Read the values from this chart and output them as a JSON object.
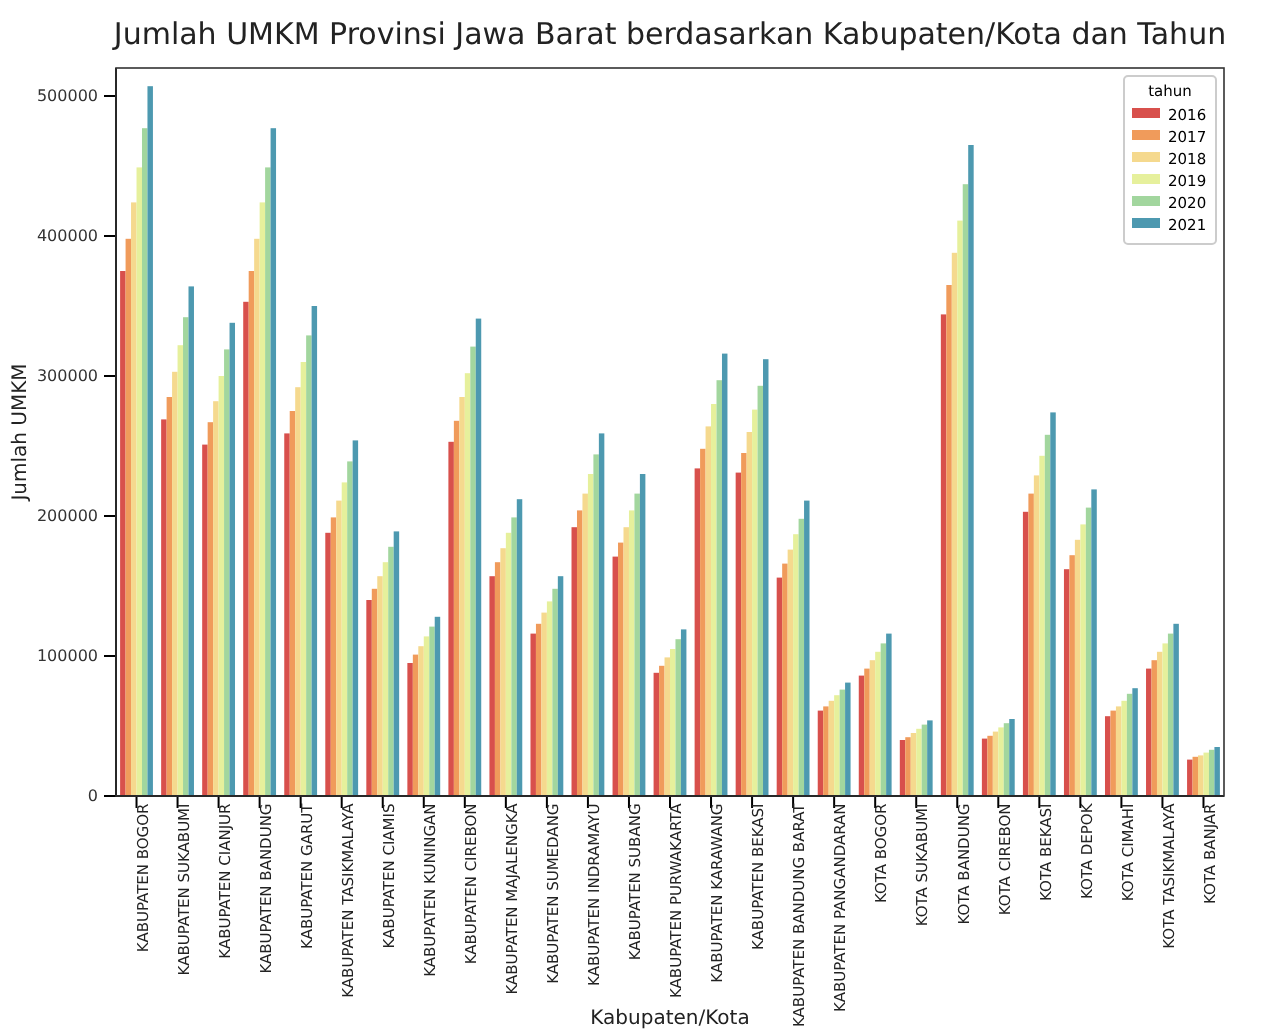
{
  "chart_data": {
    "type": "bar",
    "title": "Jumlah UMKM Provinsi Jawa Barat berdasarkan Kabupaten/Kota dan Tahun",
    "xlabel": "Kabupaten/Kota",
    "ylabel": "Jumlah UMKM",
    "legend_title": "tahun",
    "legend": "top right",
    "grid": false,
    "categories": [
      "KABUPATEN BOGOR",
      "KABUPATEN SUKABUMI",
      "KABUPATEN CIANJUR",
      "KABUPATEN BANDUNG",
      "KABUPATEN GARUT",
      "KABUPATEN TASIKMALAYA",
      "KABUPATEN CIAMIS",
      "KABUPATEN KUNINGAN",
      "KABUPATEN CIREBON",
      "KABUPATEN MAJALENGKA",
      "KABUPATEN SUMEDANG",
      "KABUPATEN INDRAMAYU",
      "KABUPATEN SUBANG",
      "KABUPATEN PURWAKARTA",
      "KABUPATEN KARAWANG",
      "KABUPATEN BEKASI",
      "KABUPATEN BANDUNG BARAT",
      "KABUPATEN PANGANDARAN",
      "KOTA BOGOR",
      "KOTA SUKABUMI",
      "KOTA BANDUNG",
      "KOTA CIREBON",
      "KOTA BEKASI",
      "KOTA DEPOK",
      "KOTA CIMAHI",
      "KOTA TASIKMALAYA",
      "KOTA BANJAR"
    ],
    "ylim": [
      0,
      520000
    ],
    "yticks": [
      0,
      100000,
      200000,
      300000,
      400000,
      500000
    ],
    "series": [
      {
        "name": "2016",
        "color": "#d8504c",
        "values": [
          375000,
          269000,
          251000,
          353000,
          259000,
          188000,
          140000,
          95000,
          253000,
          157000,
          116000,
          192000,
          171000,
          88000,
          234000,
          231000,
          156000,
          61000,
          86000,
          40000,
          344000,
          41000,
          203000,
          162000,
          57000,
          91000,
          26000
        ]
      },
      {
        "name": "2017",
        "color": "#f09b5b",
        "values": [
          398000,
          285000,
          267000,
          375000,
          275000,
          199000,
          148000,
          101000,
          268000,
          167000,
          123000,
          204000,
          181000,
          93000,
          248000,
          245000,
          166000,
          64000,
          91000,
          42000,
          365000,
          43000,
          216000,
          172000,
          61000,
          97000,
          28000
        ]
      },
      {
        "name": "2018",
        "color": "#f5d98e",
        "values": [
          424000,
          303000,
          282000,
          398000,
          292000,
          211000,
          157000,
          107000,
          285000,
          177000,
          131000,
          216000,
          192000,
          99000,
          264000,
          260000,
          176000,
          68000,
          97000,
          45000,
          388000,
          46000,
          229000,
          183000,
          64000,
          103000,
          29000
        ]
      },
      {
        "name": "2019",
        "color": "#e6f09c",
        "values": [
          449000,
          322000,
          300000,
          424000,
          310000,
          224000,
          167000,
          114000,
          302000,
          188000,
          139000,
          230000,
          204000,
          105000,
          280000,
          276000,
          187000,
          72000,
          103000,
          48000,
          411000,
          49000,
          243000,
          194000,
          68000,
          109000,
          31000
        ]
      },
      {
        "name": "2020",
        "color": "#a2d69e",
        "values": [
          477000,
          342000,
          319000,
          449000,
          329000,
          239000,
          178000,
          121000,
          321000,
          199000,
          148000,
          244000,
          216000,
          112000,
          297000,
          293000,
          198000,
          76000,
          109000,
          51000,
          437000,
          52000,
          258000,
          206000,
          73000,
          116000,
          33000
        ]
      },
      {
        "name": "2021",
        "color": "#4d99b0",
        "values": [
          507000,
          364000,
          338000,
          477000,
          350000,
          254000,
          189000,
          128000,
          341000,
          212000,
          157000,
          259000,
          230000,
          119000,
          316000,
          312000,
          211000,
          81000,
          116000,
          54000,
          465000,
          55000,
          274000,
          219000,
          77000,
          123000,
          35000
        ]
      }
    ]
  }
}
